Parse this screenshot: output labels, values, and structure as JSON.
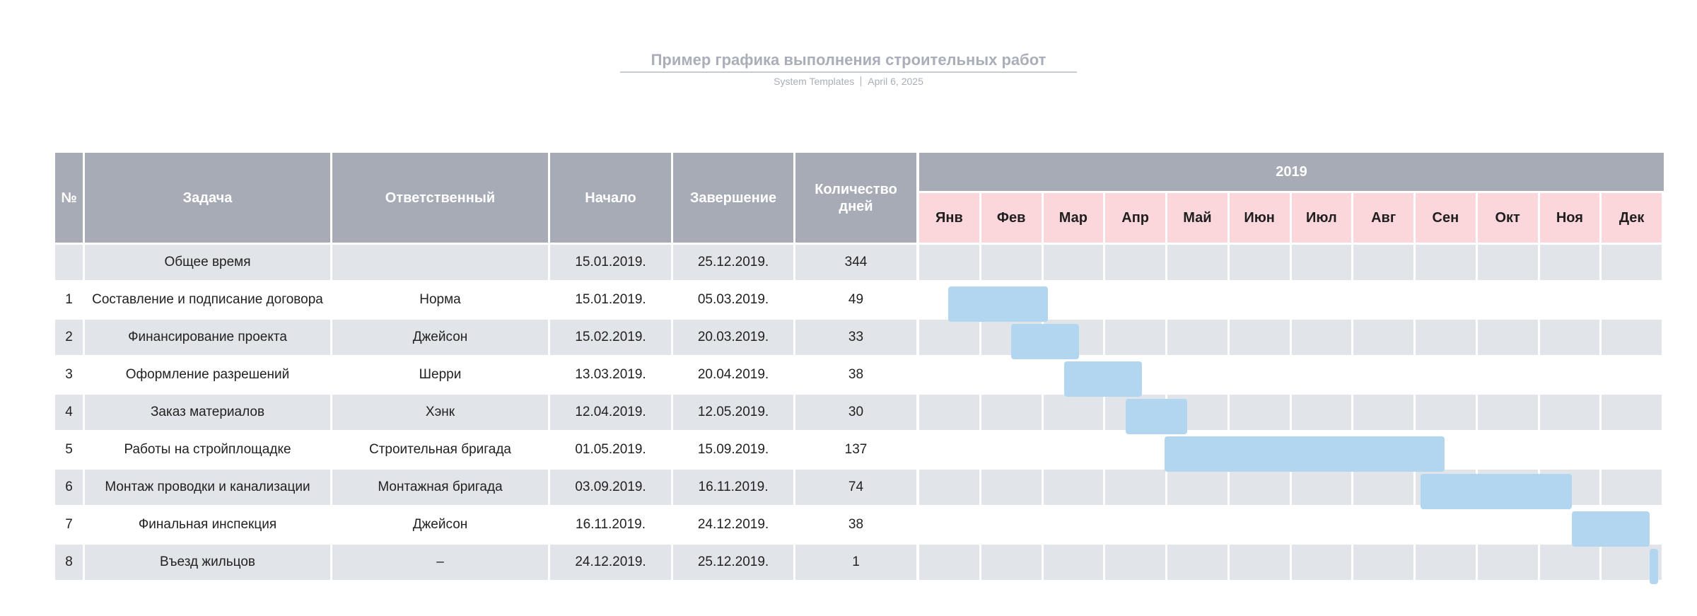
{
  "document": {
    "title": "Пример графика выполнения строительных работ",
    "source": "System Templates",
    "date": "April 6, 2025"
  },
  "colors": {
    "header_bg": "#a6abb5",
    "month_bg": "#fbd7dc",
    "row_shaded": "#e1e4e8",
    "row_plain": "#ffffff",
    "bar": "#b3d6f0"
  },
  "table": {
    "headers": [
      "№",
      "Задача",
      "Ответственный",
      "Начало",
      "Завершение",
      "Количество дней"
    ],
    "year_label": "2019",
    "months": [
      "Янв",
      "Фев",
      "Мар",
      "Апр",
      "Май",
      "Июн",
      "Июл",
      "Авг",
      "Сен",
      "Окт",
      "Ноя",
      "Дек"
    ],
    "rows": [
      {
        "num": "",
        "task": "Общее время",
        "owner": "",
        "start": "15.01.2019.",
        "end": "25.12.2019.",
        "days": "344"
      },
      {
        "num": "1",
        "task": "Составление и подписание договора",
        "owner": "Норма",
        "start": "15.01.2019.",
        "end": "05.03.2019.",
        "days": "49"
      },
      {
        "num": "2",
        "task": "Финансирование проекта",
        "owner": "Джейсон",
        "start": "15.02.2019.",
        "end": "20.03.2019.",
        "days": "33"
      },
      {
        "num": "3",
        "task": "Оформление разрешений",
        "owner": "Шерри",
        "start": "13.03.2019.",
        "end": "20.04.2019.",
        "days": "38"
      },
      {
        "num": "4",
        "task": "Заказ материалов",
        "owner": "Хэнк",
        "start": "12.04.2019.",
        "end": "12.05.2019.",
        "days": "30"
      },
      {
        "num": "5",
        "task": "Работы на стройплощадке",
        "owner": "Строительная бригада",
        "start": "01.05.2019.",
        "end": "15.09.2019.",
        "days": "137"
      },
      {
        "num": "6",
        "task": "Монтаж проводки и канализации",
        "owner": "Монтажная бригада",
        "start": "03.09.2019.",
        "end": "16.11.2019.",
        "days": "74"
      },
      {
        "num": "7",
        "task": "Финальная инспекция",
        "owner": "Джейсон",
        "start": "16.11.2019.",
        "end": "24.12.2019.",
        "days": "38"
      },
      {
        "num": "8",
        "task": "Въезд жильцов",
        "owner": "–",
        "start": "24.12.2019.",
        "end": "25.12.2019.",
        "days": "1"
      }
    ]
  },
  "chart_data": {
    "type": "gantt",
    "x_axis": "2019",
    "x_range": [
      "2019-01-01",
      "2019-12-31"
    ],
    "tasks": [
      {
        "task": "Составление и подписание договора",
        "start": "2019-01-15",
        "end": "2019-03-05"
      },
      {
        "task": "Финансирование проекта",
        "start": "2019-02-15",
        "end": "2019-03-20"
      },
      {
        "task": "Оформление разрешений",
        "start": "2019-03-13",
        "end": "2019-04-20"
      },
      {
        "task": "Заказ материалов",
        "start": "2019-04-12",
        "end": "2019-05-12"
      },
      {
        "task": "Работы на стройплощадке",
        "start": "2019-05-01",
        "end": "2019-09-15"
      },
      {
        "task": "Монтаж проводки и канализации",
        "start": "2019-09-03",
        "end": "2019-11-16"
      },
      {
        "task": "Финальная инспекция",
        "start": "2019-11-16",
        "end": "2019-12-24"
      },
      {
        "task": "Въезд жильцов",
        "start": "2019-12-24",
        "end": "2019-12-25"
      }
    ]
  }
}
